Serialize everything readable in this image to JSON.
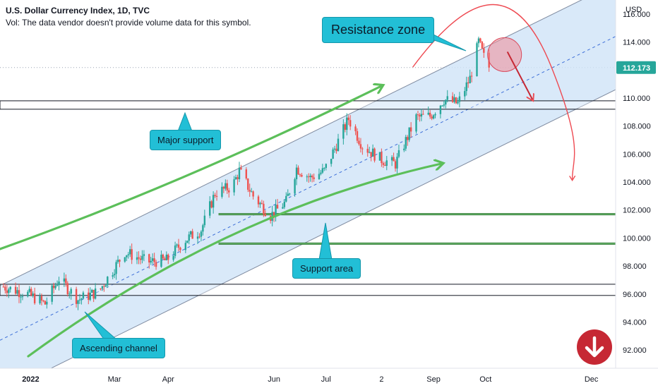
{
  "header": {
    "title": "U.S. Dollar Currency Index, 1D, TVC",
    "volume_note": "Vol: The data vendor doesn't provide volume data for this symbol."
  },
  "price_badge": "112.173",
  "annotations": {
    "resistance_zone": "Resistance zone",
    "major_support": "Major support",
    "support_area": "Support area",
    "ascending_channel": "Ascending channel"
  },
  "colors": {
    "up_candle": "#26a69a",
    "down_candle": "#ef5350",
    "channel_fill": "#cfe3f7",
    "arrow_green": "#5cbf5a",
    "arrow_red": "#ee4a52",
    "callout": "#22bfd6",
    "badge": "#26a69a",
    "down_badge": "#c62834"
  },
  "icons": {
    "down_badge": "arrow-down-circle-icon"
  },
  "chart_data": {
    "type": "candlestick",
    "y_axis_unit": "USD",
    "y_ticks": [
      92,
      94,
      96,
      98,
      100,
      102,
      104,
      106,
      108,
      110,
      112,
      114,
      116
    ],
    "y_tick_labels": [
      "92.000",
      "94.000",
      "96.000",
      "98.000",
      "100.000",
      "102.000",
      "104.000",
      "106.000",
      "108.000",
      "110.000",
      "112.000",
      "114.000",
      "116.000"
    ],
    "ylim": [
      90.7,
      117.0
    ],
    "x_ticks": [
      {
        "label": "2022",
        "date": "2022-01-01",
        "bold": true
      },
      {
        "label": "Mar",
        "date": "2022-03-01"
      },
      {
        "label": "Apr",
        "date": "2022-04-01"
      },
      {
        "label": "Jun",
        "date": "2022-06-01"
      },
      {
        "label": "Jul",
        "date": "2022-07-01"
      },
      {
        "label": "2",
        "date": "2022-08-02"
      },
      {
        "label": "Sep",
        "date": "2022-09-01"
      },
      {
        "label": "Oct",
        "date": "2022-10-01"
      },
      {
        "label": "Dec",
        "date": "2022-12-01"
      }
    ],
    "xlim": [
      "2021-12-25",
      "2022-12-15"
    ],
    "last_price": 112.173,
    "price_path": [
      [
        "2021-12-25",
        96.6
      ],
      [
        "2022-01-10",
        96.0
      ],
      [
        "2022-01-20",
        95.3
      ],
      [
        "2022-01-28",
        97.1
      ],
      [
        "2022-02-08",
        95.6
      ],
      [
        "2022-02-20",
        96.2
      ],
      [
        "2022-03-07",
        99.0
      ],
      [
        "2022-03-20",
        98.3
      ],
      [
        "2022-03-31",
        98.4
      ],
      [
        "2022-04-10",
        99.8
      ],
      [
        "2022-04-20",
        100.6
      ],
      [
        "2022-04-28",
        103.2
      ],
      [
        "2022-05-08",
        103.7
      ],
      [
        "2022-05-12",
        104.8
      ],
      [
        "2022-05-20",
        103.0
      ],
      [
        "2022-05-30",
        101.6
      ],
      [
        "2022-06-08",
        102.6
      ],
      [
        "2022-06-14",
        105.0
      ],
      [
        "2022-06-22",
        104.3
      ],
      [
        "2022-06-30",
        104.8
      ],
      [
        "2022-07-14",
        108.5
      ],
      [
        "2022-07-22",
        106.6
      ],
      [
        "2022-08-02",
        105.6
      ],
      [
        "2022-08-10",
        105.3
      ],
      [
        "2022-08-22",
        108.6
      ],
      [
        "2022-08-30",
        108.7
      ],
      [
        "2022-09-07",
        109.9
      ],
      [
        "2022-09-15",
        109.6
      ],
      [
        "2022-09-22",
        111.4
      ],
      [
        "2022-09-27",
        114.0
      ],
      [
        "2022-10-02",
        112.2
      ]
    ],
    "channel": {
      "upper": [
        [
          "2021-12-25",
          96.6
        ],
        [
          "2022-12-15",
          118.2
        ]
      ],
      "mid": [
        [
          "2021-12-25",
          92.7
        ],
        [
          "2022-12-15",
          114.4
        ]
      ],
      "lower": [
        [
          "2021-12-25",
          88.9
        ],
        [
          "2022-12-15",
          110.6
        ]
      ]
    },
    "support_levels": [
      {
        "name": "major-support-zone",
        "from": 109.8,
        "to": 109.2
      },
      {
        "name": "support-line-upper",
        "value": 101.7
      },
      {
        "name": "support-line-lower",
        "value": 99.6
      },
      {
        "name": "support-box-low",
        "from": 96.7,
        "to": 95.9
      }
    ],
    "resistance_circle": {
      "date": "2022-10-03",
      "value": 113.1
    },
    "projection_arc": [
      [
        "2022-08-20",
        112.2
      ],
      [
        "2022-09-25",
        116.2
      ],
      [
        "2022-10-20",
        116.6
      ],
      [
        "2022-11-08",
        112.2
      ],
      [
        "2022-11-20",
        104.2
      ]
    ]
  }
}
